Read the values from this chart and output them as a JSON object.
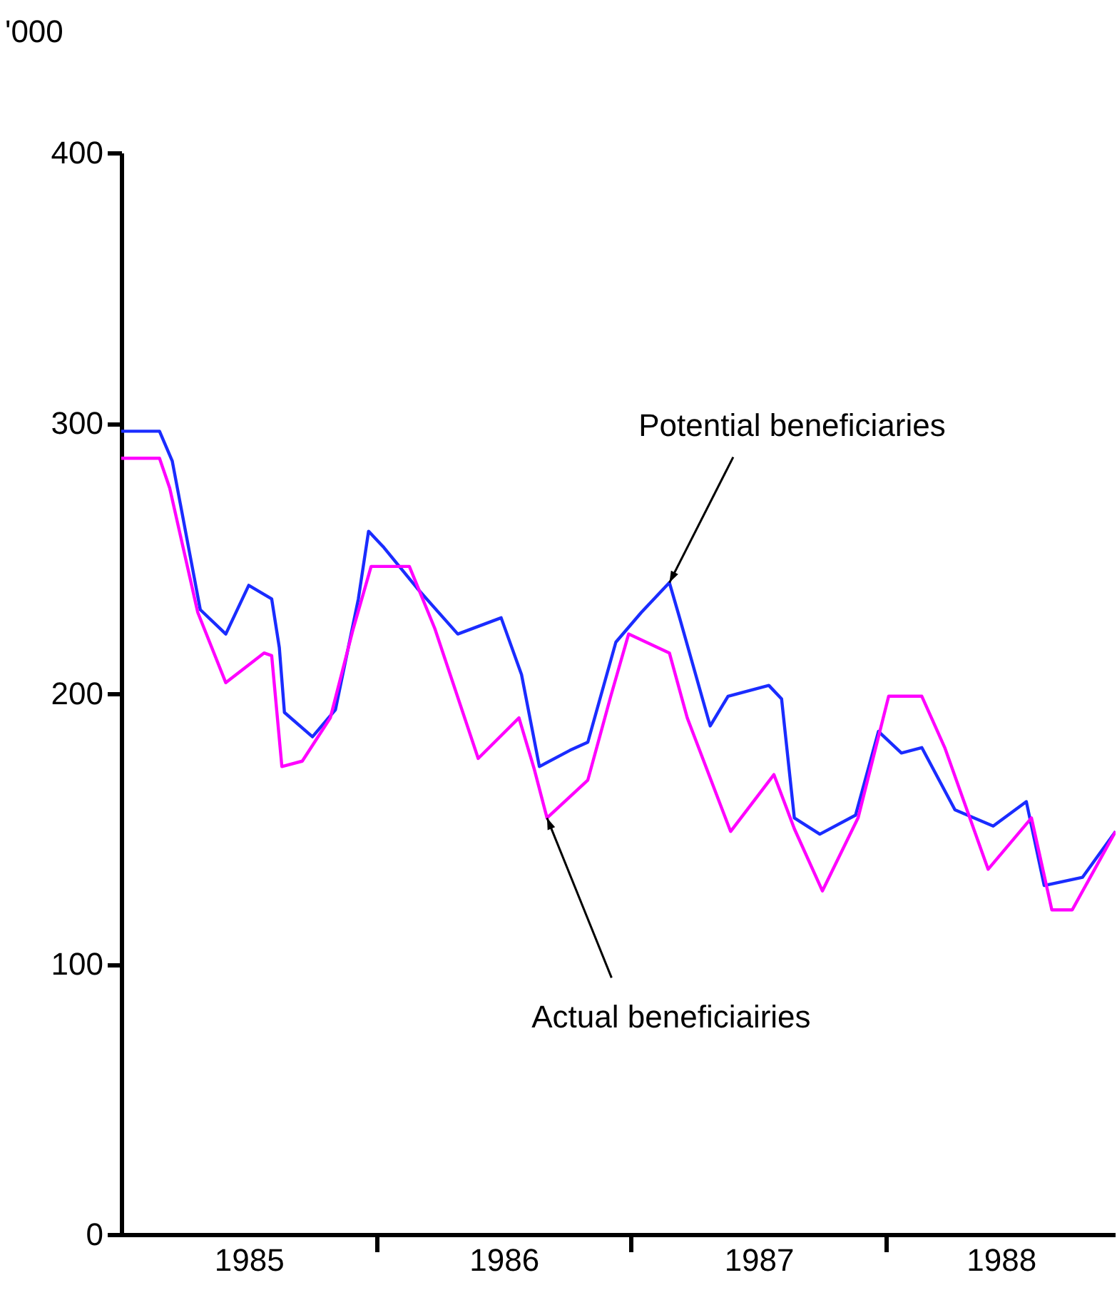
{
  "chart_data": {
    "type": "line",
    "ylabel": "'000",
    "xlim": [
      1985,
      1988.9
    ],
    "xticks": [
      {
        "value": 1985.5,
        "label": "1985"
      },
      {
        "value": 1986,
        "label": null
      },
      {
        "value": 1986.5,
        "label": "1986"
      },
      {
        "value": 1987,
        "label": null
      },
      {
        "value": 1987.5,
        "label": "1987"
      },
      {
        "value": 1988,
        "label": null
      },
      {
        "value": 1988.45,
        "label": "1988"
      }
    ],
    "ylim": [
      0,
      400
    ],
    "yticks": [
      0,
      100,
      200,
      300,
      400
    ],
    "grid": false,
    "legend": false,
    "marker": "none",
    "line_style": "solid",
    "series": [
      {
        "color": "#1a2cff",
        "x": [
          1985.0,
          1985.15,
          1985.2,
          1985.27,
          1985.31,
          1985.41,
          1985.5,
          1985.59,
          1985.62,
          1985.64,
          1985.75,
          1985.84,
          1985.93,
          1985.97,
          1986.03,
          1986.16,
          1986.32,
          1986.49,
          1986.57,
          1986.64,
          1986.76,
          1986.83,
          1986.94,
          1987.04,
          1987.15,
          1987.19,
          1987.31,
          1987.38,
          1987.54,
          1987.59,
          1987.64,
          1987.74,
          1987.88,
          1987.97,
          1988.06,
          1988.14,
          1988.27,
          1988.42,
          1988.55,
          1988.62,
          1988.77,
          1988.9
        ],
        "values": [
          297,
          297,
          286,
          251,
          231,
          222,
          240,
          235,
          217,
          193,
          184,
          194,
          235,
          260,
          254,
          239,
          222,
          228,
          207,
          173,
          179,
          182,
          219,
          230,
          241,
          228,
          188,
          199,
          203,
          198,
          154,
          148,
          155,
          186,
          178,
          180,
          157,
          151,
          160,
          129,
          132,
          149
        ]
      },
      {
        "color": "#ff00ff",
        "x": [
          1985.0,
          1985.15,
          1985.19,
          1985.3,
          1985.41,
          1985.56,
          1985.59,
          1985.63,
          1985.71,
          1985.82,
          1985.91,
          1985.98,
          1986.13,
          1986.23,
          1986.4,
          1986.56,
          1986.62,
          1986.67,
          1986.83,
          1986.92,
          1986.99,
          1987.15,
          1987.22,
          1987.39,
          1987.56,
          1987.64,
          1987.75,
          1987.89,
          1988.01,
          1988.14,
          1988.23,
          1988.4,
          1988.57,
          1988.65,
          1988.73,
          1988.9
        ],
        "values": [
          287,
          287,
          276,
          230,
          204,
          215,
          214,
          173,
          175,
          191,
          224,
          247,
          247,
          224,
          176,
          191,
          172,
          154,
          168,
          199,
          222,
          215,
          191,
          149,
          170,
          150,
          127,
          154,
          199,
          199,
          180,
          135,
          154,
          120,
          120,
          149
        ]
      }
    ],
    "annotations": [
      {
        "text": "Potential beneficiaries",
        "x": 1987.15,
        "y": 241
      },
      {
        "text": "Actual beneficiairies",
        "x": 1986.67,
        "y": 154
      }
    ]
  }
}
